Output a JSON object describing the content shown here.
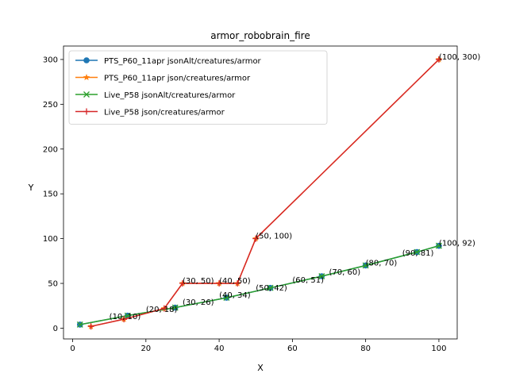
{
  "chart_data": {
    "type": "line",
    "title": "armor_robobrain_fire",
    "xlabel": "X",
    "ylabel": "Y",
    "xlim": [
      -2.5,
      105
    ],
    "ylim": [
      -12,
      315
    ],
    "xticks": [
      0,
      20,
      40,
      60,
      80,
      100
    ],
    "yticks": [
      0,
      50,
      100,
      150,
      200,
      250,
      300
    ],
    "grid": false,
    "legend_position": "top-left",
    "series": [
      {
        "name": "PTS_P60_11apr jsonAlt/creatures/armor",
        "color": "#1f77b4",
        "marker": "circle",
        "x": [
          2,
          15,
          28,
          42,
          54,
          68,
          80,
          94,
          100
        ],
        "y": [
          4,
          14,
          23,
          34,
          45,
          58,
          70,
          85,
          92
        ]
      },
      {
        "name": "PTS_P60_11apr json/creatures/armor",
        "color": "#ff7f0e",
        "marker": "star",
        "x": [
          5,
          14,
          25,
          30,
          40,
          45,
          50,
          100
        ],
        "y": [
          2,
          10,
          22,
          50,
          50,
          50,
          100,
          300
        ]
      },
      {
        "name": "Live_P58 jsonAlt/creatures/armor",
        "color": "#2ca02c",
        "marker": "x",
        "x": [
          2,
          15,
          28,
          42,
          54,
          68,
          80,
          94,
          100
        ],
        "y": [
          4,
          14,
          23,
          34,
          45,
          58,
          70,
          85,
          92
        ]
      },
      {
        "name": "Live_P58 json/creatures/armor",
        "color": "#d62728",
        "marker": "plus",
        "x": [
          5,
          14,
          25,
          30,
          40,
          45,
          50,
          100
        ],
        "y": [
          2,
          10,
          22,
          50,
          50,
          50,
          100,
          300
        ]
      }
    ],
    "annotations": [
      {
        "text": "(10, 10)",
        "x": 10,
        "y": 10
      },
      {
        "text": "(20, 18)",
        "x": 20,
        "y": 18
      },
      {
        "text": "(30, 26)",
        "x": 30,
        "y": 26
      },
      {
        "text": "(30, 50)",
        "x": 30,
        "y": 50
      },
      {
        "text": "(40, 50)",
        "x": 40,
        "y": 50
      },
      {
        "text": "(40, 34)",
        "x": 40,
        "y": 34
      },
      {
        "text": "(50, 42)",
        "x": 50,
        "y": 42
      },
      {
        "text": "(50, 100)",
        "x": 50,
        "y": 100
      },
      {
        "text": "(60, 51)",
        "x": 60,
        "y": 51
      },
      {
        "text": "(70, 60)",
        "x": 70,
        "y": 60
      },
      {
        "text": "(80, 70)",
        "x": 80,
        "y": 70
      },
      {
        "text": "(90, 81)",
        "x": 90,
        "y": 81
      },
      {
        "text": "(100, 92)",
        "x": 100,
        "y": 92
      },
      {
        "text": "(100, 300)",
        "x": 100,
        "y": 300
      }
    ]
  }
}
